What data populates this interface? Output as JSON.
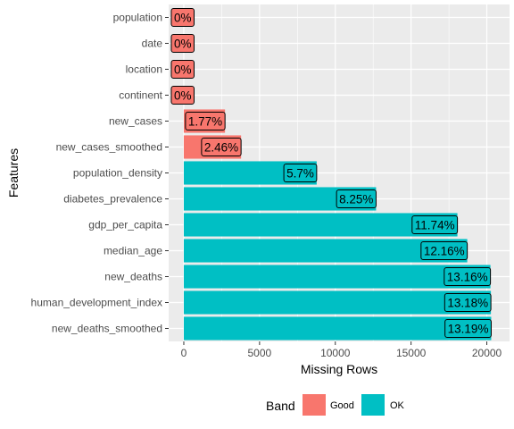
{
  "chart_data": {
    "type": "bar",
    "orientation": "horizontal",
    "xlabel": "Missing Rows",
    "ylabel": "Features",
    "xlim": [
      -1000,
      21500
    ],
    "x_ticks": [
      0,
      5000,
      10000,
      15000,
      20000
    ],
    "x_tick_labels": [
      "0",
      "5000",
      "10000",
      "15000",
      "20000"
    ],
    "grid": true,
    "legend": {
      "title": "Band",
      "position": "bottom",
      "entries": [
        {
          "label": "Good",
          "color": "#F8766D"
        },
        {
          "label": "OK",
          "color": "#00BFC4"
        }
      ]
    },
    "bars": [
      {
        "feature": "population",
        "value": 0,
        "label": "0%",
        "band": "Good"
      },
      {
        "feature": "date",
        "value": 0,
        "label": "0%",
        "band": "Good"
      },
      {
        "feature": "location",
        "value": 0,
        "label": "0%",
        "band": "Good"
      },
      {
        "feature": "continent",
        "value": 0,
        "label": "0%",
        "band": "Good"
      },
      {
        "feature": "new_cases",
        "value": 2720,
        "label": "1.77%",
        "band": "Good"
      },
      {
        "feature": "new_cases_smoothed",
        "value": 3780,
        "label": "2.46%",
        "band": "Good"
      },
      {
        "feature": "population_density",
        "value": 8770,
        "label": "5.7%",
        "band": "OK"
      },
      {
        "feature": "diabetes_prevalence",
        "value": 12690,
        "label": "8.25%",
        "band": "OK"
      },
      {
        "feature": "gdp_per_capita",
        "value": 18060,
        "label": "11.74%",
        "band": "OK"
      },
      {
        "feature": "median_age",
        "value": 18710,
        "label": "12.16%",
        "band": "OK"
      },
      {
        "feature": "new_deaths",
        "value": 20240,
        "label": "13.16%",
        "band": "OK"
      },
      {
        "feature": "human_development_index",
        "value": 20270,
        "label": "13.18%",
        "band": "OK"
      },
      {
        "feature": "new_deaths_smoothed",
        "value": 20290,
        "label": "13.19%",
        "band": "OK"
      }
    ]
  }
}
